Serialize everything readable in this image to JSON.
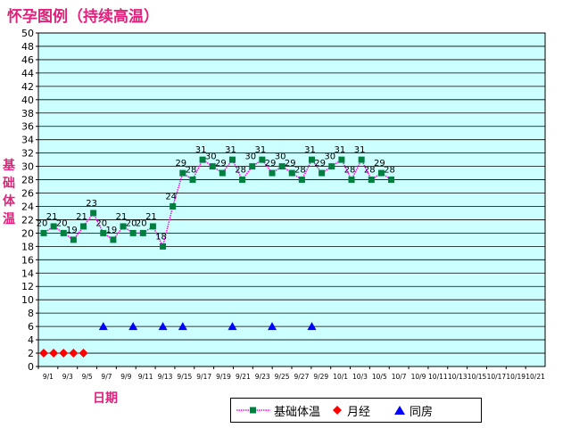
{
  "title": "怀孕图例（持续高温）",
  "ylabel": "基础体温",
  "xlabel": "日期",
  "legend": {
    "temperature": "基础体温",
    "period": "月经",
    "intercourse": "同房"
  },
  "colors": {
    "plot_bg": "#ccffff",
    "temp_line": "#ff00ff",
    "temp_marker": "#007f3f",
    "period_marker": "#ff0000",
    "intercourse_marker": "#0000ff",
    "title": "#e0207a"
  },
  "chart_data": {
    "type": "line",
    "ylim": [
      0,
      50
    ],
    "yticks": [
      0,
      2,
      4,
      6,
      8,
      10,
      12,
      14,
      16,
      18,
      20,
      22,
      24,
      26,
      28,
      30,
      32,
      34,
      36,
      38,
      40,
      42,
      44,
      46,
      48,
      50
    ],
    "grid": true,
    "legend_position": "bottom-right",
    "x_tick_labels": [
      "9/1",
      "9/3",
      "9/5",
      "9/7",
      "9/9",
      "9/11",
      "9/13",
      "9/15",
      "9/17",
      "9/19",
      "9/21",
      "9/23",
      "9/25",
      "9/27",
      "9/29",
      "10/1",
      "10/3",
      "10/5",
      "10/7",
      "10/9",
      "10/11",
      "10/13",
      "10/15",
      "10/17",
      "10/19",
      "10/21"
    ],
    "temperature": {
      "name": "基础体温",
      "values": [
        20,
        21,
        20,
        19,
        21,
        23,
        20,
        19,
        21,
        20,
        20,
        21,
        18,
        24,
        29,
        28,
        31,
        30,
        29,
        31,
        28,
        30,
        31,
        29,
        30,
        29,
        28,
        31,
        29,
        30,
        31,
        28,
        31,
        28,
        29,
        28
      ]
    },
    "period": {
      "name": "月经",
      "days": [
        0,
        1,
        2,
        3,
        4
      ],
      "value": 2
    },
    "intercourse": {
      "name": "同房",
      "days": [
        6,
        9,
        12,
        14,
        19,
        23,
        27
      ],
      "value": 6
    }
  }
}
